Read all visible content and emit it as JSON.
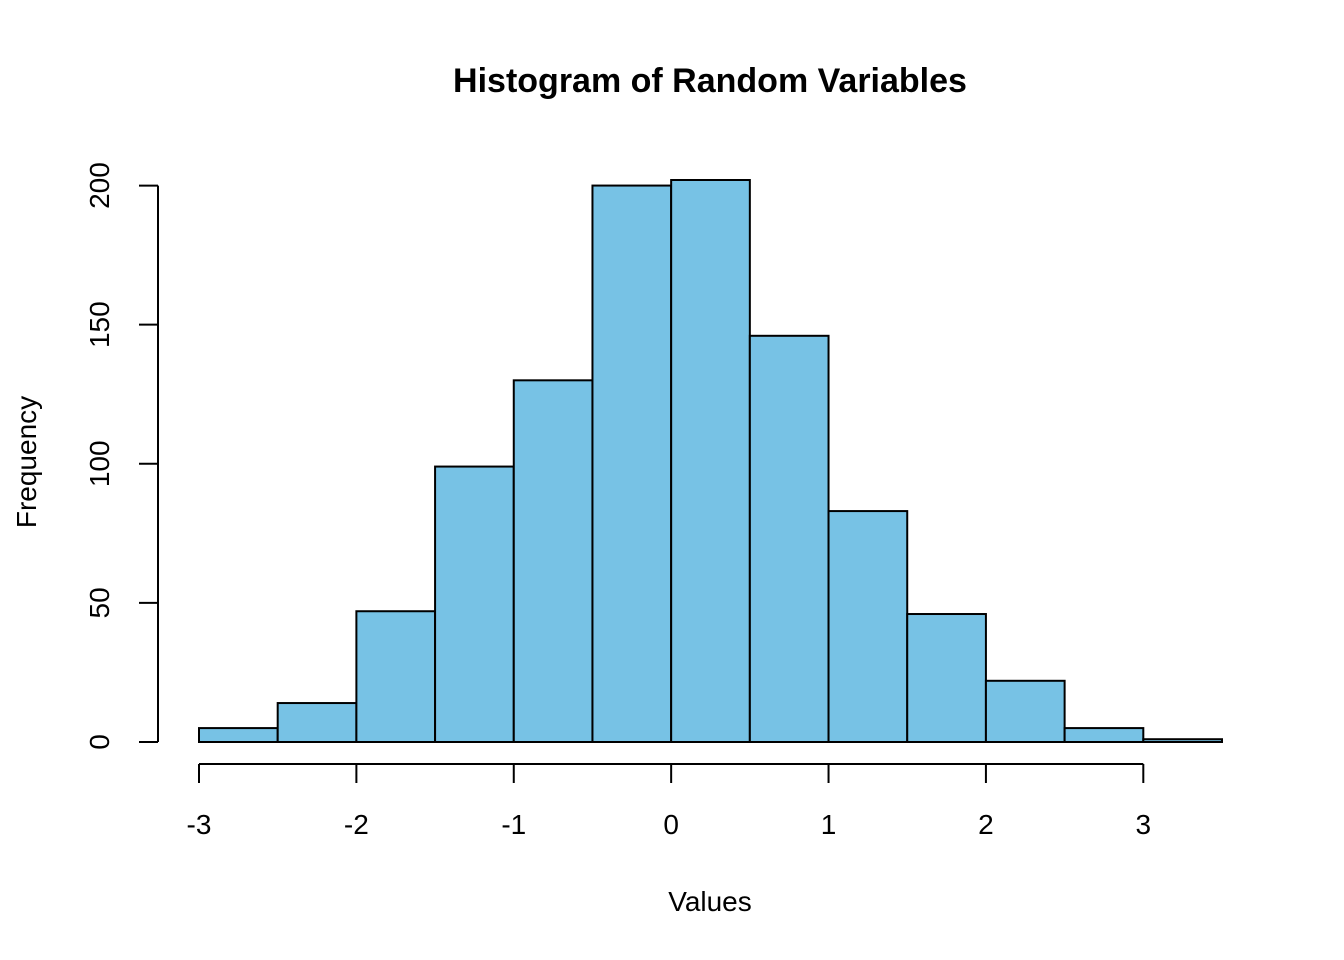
{
  "chart_data": {
    "type": "bar",
    "subtype": "histogram",
    "title": "Histogram of Random Variables",
    "xlabel": "Values",
    "ylabel": "Frequency",
    "bin_edges": [
      -3,
      -2.5,
      -2,
      -1.5,
      -1,
      -0.5,
      0,
      0.5,
      1,
      1.5,
      2,
      2.5,
      3,
      3.5
    ],
    "values": [
      5,
      14,
      47,
      99,
      130,
      200,
      202,
      146,
      83,
      46,
      22,
      5,
      1
    ],
    "xlim": [
      -3,
      3.5
    ],
    "ylim": [
      0,
      202
    ],
    "x_ticks": [
      -3,
      -2,
      -1,
      0,
      1,
      2,
      3
    ],
    "y_ticks": [
      0,
      50,
      100,
      150,
      200
    ],
    "bar_color": "#77C2E5",
    "edge_color": "#000000",
    "grid": false,
    "legend": "none"
  }
}
